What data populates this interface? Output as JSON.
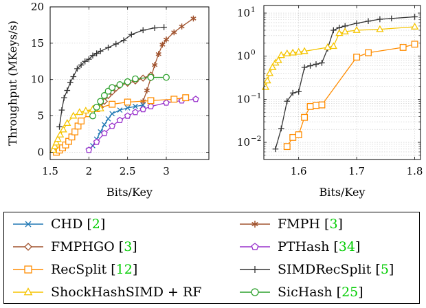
{
  "chart_data": [
    {
      "type": "line",
      "xlabel": "Bits/Key",
      "ylabel": "Throughput (MKeys/s)",
      "xlim": [
        1.5,
        3.55
      ],
      "ylim": [
        -1,
        20
      ],
      "xscale": "linear",
      "yscale": "linear",
      "xticks": [
        1.5,
        2,
        2.5,
        3
      ],
      "xticklabels": [
        "1.5",
        "2",
        "2.5",
        "3"
      ],
      "yticks": [
        0,
        5,
        10,
        15,
        20
      ],
      "yticklabels": [
        "0",
        "5",
        "10",
        "15",
        "20"
      ],
      "grid": true,
      "series": [
        {
          "name": "CHD",
          "color": "#1f77b4",
          "marker": "x",
          "x": [
            2.0,
            2.05,
            2.1,
            2.15,
            2.2,
            2.25,
            2.3,
            2.4,
            2.5,
            2.6,
            2.7
          ],
          "y": [
            0.3,
            0.9,
            1.8,
            2.8,
            3.8,
            4.6,
            5.3,
            5.8,
            6.1,
            6.3,
            6.5
          ]
        },
        {
          "name": "FMPH",
          "color": "#a0522d",
          "marker": "asterisk",
          "x": [
            2.7,
            2.75,
            2.8,
            2.85,
            2.9,
            2.95,
            3.0,
            3.1,
            3.2,
            3.35
          ],
          "y": [
            7.0,
            8.5,
            10.2,
            12.0,
            13.5,
            14.8,
            15.5,
            16.5,
            17.3,
            18.4
          ]
        },
        {
          "name": "FMPHGO",
          "color": "#a0522d",
          "marker": "diamond",
          "x": [
            2.15,
            2.2,
            2.25,
            2.3,
            2.35,
            2.4,
            2.5,
            2.6,
            2.7,
            2.8
          ],
          "y": [
            6.2,
            7.0,
            7.8,
            8.3,
            8.8,
            9.2,
            9.5,
            9.8,
            10.2,
            10.6
          ]
        },
        {
          "name": "PTHash",
          "color": "#9932cc",
          "marker": "pentagon",
          "x": [
            2.0,
            2.1,
            2.2,
            2.3,
            2.4,
            2.5,
            2.6,
            2.7,
            2.8,
            3.0,
            3.2,
            3.38
          ],
          "y": [
            0.3,
            1.4,
            2.6,
            3.6,
            4.4,
            5.0,
            5.5,
            5.9,
            6.3,
            6.8,
            7.1,
            7.3
          ]
        },
        {
          "name": "RecSplit",
          "color": "#ff8c00",
          "marker": "square",
          "x": [
            1.58,
            1.62,
            1.66,
            1.7,
            1.74,
            1.78,
            1.82,
            1.86,
            1.9,
            2.0,
            2.1,
            2.3,
            2.5,
            2.8,
            3.1,
            3.25
          ],
          "y": [
            0.0,
            0.3,
            0.6,
            1.0,
            1.5,
            2.1,
            2.8,
            3.6,
            4.3,
            5.3,
            6.0,
            6.6,
            6.9,
            7.1,
            7.3,
            7.5
          ]
        },
        {
          "name": "SIMDRecSplit",
          "color": "#333333",
          "marker": "plus",
          "x": [
            1.62,
            1.65,
            1.68,
            1.72,
            1.76,
            1.8,
            1.85,
            1.9,
            1.95,
            2.0,
            2.05,
            2.1,
            2.15,
            2.25,
            2.35,
            2.45,
            2.55,
            2.7,
            2.85,
            2.97
          ],
          "y": [
            3.5,
            5.8,
            7.5,
            8.5,
            9.6,
            10.4,
            11.5,
            12.0,
            12.5,
            12.8,
            13.3,
            13.6,
            13.9,
            14.4,
            14.9,
            15.4,
            16.2,
            16.8,
            17.1,
            17.2
          ]
        },
        {
          "name": "ShockHashSIMD + RF",
          "color": "#f5c400",
          "marker": "triangle",
          "x": [
            1.54,
            1.56,
            1.58,
            1.6,
            1.63,
            1.67,
            1.72,
            1.8,
            1.88,
            1.96,
            2.05,
            2.15
          ],
          "y": [
            0.3,
            0.8,
            1.3,
            1.8,
            2.4,
            3.1,
            4.0,
            5.0,
            5.5,
            5.7,
            5.9,
            6.0
          ]
        },
        {
          "name": "SicHash",
          "color": "#2ca02c",
          "marker": "circle",
          "x": [
            2.05,
            2.1,
            2.15,
            2.2,
            2.25,
            2.3,
            2.4,
            2.5,
            2.6,
            2.8,
            3.0
          ],
          "y": [
            5.0,
            6.2,
            7.0,
            7.8,
            8.4,
            8.9,
            9.3,
            9.7,
            10.1,
            10.3,
            10.3
          ]
        }
      ]
    },
    {
      "type": "line",
      "xlabel": "Bits/Key",
      "ylabel": "",
      "xlim": [
        1.54,
        1.81
      ],
      "ylim": [
        0.004,
        15
      ],
      "xscale": "linear",
      "yscale": "log",
      "xticks": [
        1.6,
        1.7,
        1.8
      ],
      "xticklabels": [
        "1.6",
        "1.7",
        "1.8"
      ],
      "yticks": [
        0.01,
        0.1,
        1,
        10
      ],
      "ytick_mantissa": [
        "10",
        "10",
        "10",
        "10"
      ],
      "ytick_exponents": [
        "−2",
        "−1",
        "0",
        "1"
      ],
      "grid": true,
      "series": [
        {
          "name": "RecSplit",
          "color": "#ff8c00",
          "marker": "square",
          "x": [
            1.58,
            1.59,
            1.6,
            1.61,
            1.62,
            1.63,
            1.64,
            1.7,
            1.72,
            1.78,
            1.8
          ],
          "y": [
            0.008,
            0.013,
            0.015,
            0.038,
            0.068,
            0.072,
            0.074,
            0.95,
            1.2,
            1.6,
            1.9
          ]
        },
        {
          "name": "SIMDRecSplit",
          "color": "#333333",
          "marker": "plus",
          "x": [
            1.56,
            1.57,
            1.58,
            1.59,
            1.6,
            1.61,
            1.62,
            1.63,
            1.64,
            1.65,
            1.66,
            1.67,
            1.68,
            1.7,
            1.72,
            1.74,
            1.76,
            1.8
          ],
          "y": [
            0.007,
            0.021,
            0.09,
            0.14,
            0.15,
            0.55,
            0.6,
            0.65,
            0.7,
            1.5,
            4.0,
            4.6,
            5.0,
            5.8,
            6.5,
            7.2,
            7.5,
            8.2
          ]
        },
        {
          "name": "ShockHashSIMD + RF",
          "color": "#f5c400",
          "marker": "triangle",
          "x": [
            1.543,
            1.546,
            1.55,
            1.555,
            1.56,
            1.565,
            1.57,
            1.58,
            1.59,
            1.6,
            1.61,
            1.65,
            1.66,
            1.67,
            1.68,
            1.7,
            1.74,
            1.8
          ],
          "y": [
            0.19,
            0.27,
            0.4,
            0.55,
            0.7,
            0.8,
            1.05,
            1.15,
            1.2,
            1.25,
            1.3,
            1.6,
            1.7,
            3.4,
            3.7,
            4.0,
            4.2,
            4.8
          ]
        }
      ]
    }
  ],
  "legend": {
    "items": [
      {
        "label": "CHD",
        "cite": "2",
        "color": "#1f77b4",
        "marker": "x"
      },
      {
        "label": "FMPH",
        "cite": "3",
        "color": "#a0522d",
        "marker": "asterisk"
      },
      {
        "label": "FMPHGO",
        "cite": "3",
        "color": "#a0522d",
        "marker": "diamond"
      },
      {
        "label": "PTHash",
        "cite": "34",
        "color": "#9932cc",
        "marker": "pentagon"
      },
      {
        "label": "RecSplit",
        "cite": "12",
        "color": "#ff8c00",
        "marker": "square"
      },
      {
        "label": "SIMDRecSplit",
        "cite": "5",
        "color": "#333333",
        "marker": "plus"
      },
      {
        "label": "ShockHashSIMD + RF",
        "cite": "",
        "color": "#f5c400",
        "marker": "triangle"
      },
      {
        "label": "SicHash",
        "cite": "25",
        "color": "#2ca02c",
        "marker": "circle"
      }
    ]
  }
}
